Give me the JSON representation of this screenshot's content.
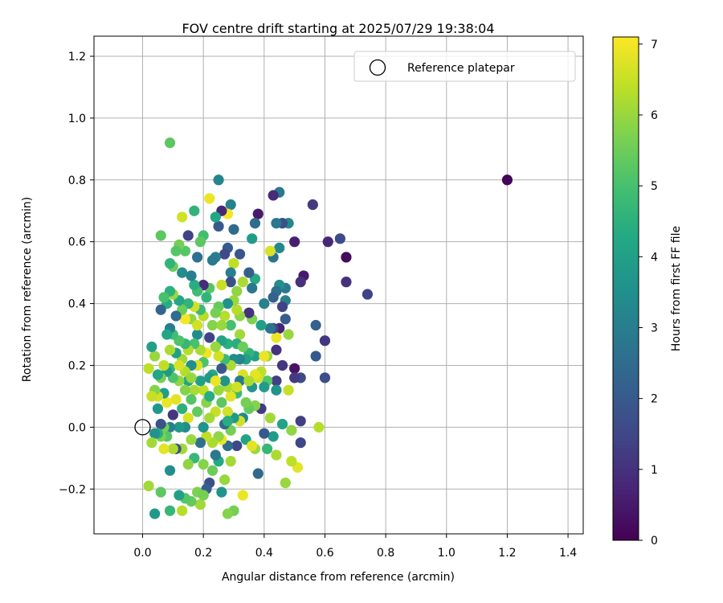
{
  "chart_data": {
    "type": "scatter",
    "title": "FOV centre drift starting at 2025/07/29 19:38:04",
    "xlabel": "Angular distance from reference (arcmin)",
    "ylabel": "Rotation from reference (arcmin)",
    "xlim": [
      -0.16,
      1.45
    ],
    "ylim": [
      -0.345,
      1.265
    ],
    "xticks": [
      0.0,
      0.2,
      0.4,
      0.6,
      0.8,
      1.0,
      1.2,
      1.4
    ],
    "xtick_labels": [
      "0.0",
      "0.2",
      "0.4",
      "0.6",
      "0.8",
      "1.0",
      "1.2",
      "1.4"
    ],
    "yticks": [
      -0.2,
      0.0,
      0.2,
      0.4,
      0.6,
      0.8,
      1.0,
      1.2
    ],
    "ytick_labels": [
      "−0.2",
      "0.0",
      "0.2",
      "0.4",
      "0.6",
      "0.8",
      "1.0",
      "1.2"
    ],
    "grid": true,
    "legend": {
      "position": "top-right",
      "entries": [
        "Reference platepar"
      ]
    },
    "reference_point": {
      "x": 0.0,
      "y": 0.0
    },
    "colorbar": {
      "label": "Hours from first FF file",
      "min": 0,
      "max": 7.1,
      "ticks": [
        0,
        1,
        2,
        3,
        4,
        5,
        6,
        7
      ],
      "tick_labels": [
        "0",
        "1",
        "2",
        "3",
        "4",
        "5",
        "6",
        "7"
      ],
      "colormap": "viridis"
    },
    "points": [
      [
        1.2,
        0.8,
        0.1
      ],
      [
        0.09,
        0.92,
        5.3
      ],
      [
        0.74,
        0.43,
        1.4
      ],
      [
        0.67,
        0.55,
        0.2
      ],
      [
        0.67,
        0.47,
        1.0
      ],
      [
        0.65,
        0.61,
        1.6
      ],
      [
        0.61,
        0.6,
        0.8
      ],
      [
        0.6,
        0.28,
        1.1
      ],
      [
        0.6,
        0.16,
        1.7
      ],
      [
        0.57,
        0.33,
        2.2
      ],
      [
        0.57,
        0.23,
        2.0
      ],
      [
        0.58,
        0.0,
        6.3
      ],
      [
        0.56,
        0.72,
        1.2
      ],
      [
        0.53,
        0.49,
        0.5
      ],
      [
        0.52,
        0.47,
        1.0
      ],
      [
        0.52,
        0.16,
        1.6
      ],
      [
        0.52,
        0.02,
        1.3
      ],
      [
        0.52,
        -0.05,
        1.5
      ],
      [
        0.51,
        -0.13,
        6.8
      ],
      [
        0.5,
        0.6,
        0.6
      ],
      [
        0.5,
        0.19,
        0.4
      ],
      [
        0.5,
        0.16,
        1.2
      ],
      [
        0.49,
        -0.01,
        5.9
      ],
      [
        0.49,
        -0.11,
        6.4
      ],
      [
        0.48,
        0.66,
        3.3
      ],
      [
        0.48,
        0.3,
        6.0
      ],
      [
        0.48,
        0.12,
        6.5
      ],
      [
        0.47,
        0.45,
        2.9
      ],
      [
        0.47,
        0.41,
        3.1
      ],
      [
        0.47,
        0.35,
        2.1
      ],
      [
        0.47,
        -0.18,
        6.0
      ],
      [
        0.46,
        0.66,
        1.7
      ],
      [
        0.46,
        0.39,
        1.4
      ],
      [
        0.46,
        0.2,
        1.1
      ],
      [
        0.46,
        0.01,
        4.1
      ],
      [
        0.45,
        0.76,
        2.9
      ],
      [
        0.45,
        0.58,
        3.3
      ],
      [
        0.45,
        0.46,
        3.5
      ],
      [
        0.45,
        0.32,
        0.7
      ],
      [
        0.44,
        0.66,
        2.8
      ],
      [
        0.44,
        0.44,
        2.6
      ],
      [
        0.44,
        0.29,
        6.9
      ],
      [
        0.44,
        0.25,
        1.0
      ],
      [
        0.44,
        0.15,
        1.3
      ],
      [
        0.44,
        -0.09,
        6.2
      ],
      [
        0.43,
        0.75,
        0.9
      ],
      [
        0.43,
        0.55,
        2.7
      ],
      [
        0.43,
        0.42,
        2.2
      ],
      [
        0.43,
        0.32,
        1.5
      ],
      [
        0.43,
        -0.03,
        3.9
      ],
      [
        0.42,
        0.57,
        6.7
      ],
      [
        0.42,
        0.32,
        2.7
      ],
      [
        0.42,
        0.03,
        6.1
      ],
      [
        0.41,
        0.23,
        6.0
      ],
      [
        0.41,
        0.15,
        5.2
      ],
      [
        0.41,
        -0.07,
        4.7
      ],
      [
        0.4,
        0.4,
        3.1
      ],
      [
        0.4,
        0.13,
        3.9
      ],
      [
        0.4,
        -0.02,
        2.0
      ],
      [
        0.39,
        0.33,
        4.0
      ],
      [
        0.39,
        0.18,
        6.4
      ],
      [
        0.39,
        0.06,
        1.2
      ],
      [
        0.38,
        0.69,
        0.5
      ],
      [
        0.38,
        0.16,
        6.6
      ],
      [
        0.38,
        -0.15,
        2.4
      ],
      [
        0.37,
        0.66,
        2.5
      ],
      [
        0.37,
        0.48,
        4.3
      ],
      [
        0.37,
        0.23,
        4.0
      ],
      [
        0.37,
        0.17,
        6.8
      ],
      [
        0.37,
        0.07,
        5.8
      ],
      [
        0.37,
        -0.07,
        6.0
      ],
      [
        0.36,
        0.61,
        3.9
      ],
      [
        0.36,
        0.45,
        2.8
      ],
      [
        0.36,
        0.35,
        5.7
      ],
      [
        0.36,
        0.13,
        3.7
      ],
      [
        0.35,
        0.5,
        2.1
      ],
      [
        0.35,
        0.37,
        1.0
      ],
      [
        0.35,
        0.24,
        4.6
      ],
      [
        0.35,
        0.06,
        5.4
      ],
      [
        0.34,
        0.22,
        4.0
      ],
      [
        0.34,
        0.08,
        5.6
      ],
      [
        0.34,
        -0.04,
        4.1
      ],
      [
        0.33,
        0.47,
        6.2
      ],
      [
        0.33,
        0.17,
        6.7
      ],
      [
        0.33,
        0.03,
        3.3
      ],
      [
        0.33,
        -0.22,
        6.9
      ],
      [
        0.32,
        0.56,
        1.9
      ],
      [
        0.32,
        0.36,
        5.9
      ],
      [
        0.32,
        0.3,
        6.1
      ],
      [
        0.32,
        0.22,
        3.2
      ],
      [
        0.32,
        0.15,
        2.9
      ],
      [
        0.32,
        0.02,
        6.6
      ],
      [
        0.31,
        0.44,
        5.9
      ],
      [
        0.31,
        0.38,
        6.3
      ],
      [
        0.31,
        0.27,
        4.4
      ],
      [
        0.31,
        0.11,
        4.8
      ],
      [
        0.31,
        -0.06,
        1.5
      ],
      [
        0.3,
        0.64,
        2.5
      ],
      [
        0.3,
        0.53,
        6.4
      ],
      [
        0.3,
        0.41,
        6.0
      ],
      [
        0.3,
        0.22,
        3.4
      ],
      [
        0.3,
        0.03,
        3.8
      ],
      [
        0.3,
        -0.27,
        5.6
      ],
      [
        0.29,
        0.72,
        3.1
      ],
      [
        0.29,
        0.5,
        3.0
      ],
      [
        0.29,
        0.47,
        1.7
      ],
      [
        0.29,
        0.33,
        5.0
      ],
      [
        0.29,
        0.2,
        6.2
      ],
      [
        0.29,
        0.1,
        6.8
      ],
      [
        0.29,
        -0.01,
        5.6
      ],
      [
        0.29,
        -0.11,
        6.1
      ],
      [
        0.28,
        0.69,
        7.0
      ],
      [
        0.28,
        0.58,
        2.0
      ],
      [
        0.28,
        0.4,
        3.6
      ],
      [
        0.28,
        0.27,
        4.5
      ],
      [
        0.28,
        0.13,
        6.2
      ],
      [
        0.28,
        0.05,
        6.6
      ],
      [
        0.28,
        -0.06,
        2.5
      ],
      [
        0.28,
        -0.28,
        5.8
      ],
      [
        0.27,
        0.56,
        1.6
      ],
      [
        0.27,
        0.36,
        6.3
      ],
      [
        0.27,
        0.22,
        4.8
      ],
      [
        0.27,
        0.15,
        3.6
      ],
      [
        0.27,
        0.01,
        2.4
      ],
      [
        0.27,
        -0.17,
        6.0
      ],
      [
        0.26,
        0.7,
        0.8
      ],
      [
        0.26,
        0.46,
        6.5
      ],
      [
        0.26,
        0.28,
        4.1
      ],
      [
        0.26,
        0.19,
        1.9
      ],
      [
        0.26,
        0.08,
        5.3
      ],
      [
        0.26,
        -0.04,
        6.9
      ],
      [
        0.26,
        -0.21,
        3.6
      ],
      [
        0.25,
        0.8,
        3.2
      ],
      [
        0.25,
        0.65,
        2.0
      ],
      [
        0.25,
        0.39,
        5.4
      ],
      [
        0.25,
        0.23,
        6.6
      ],
      [
        0.25,
        0.12,
        6.0
      ],
      [
        0.25,
        -0.03,
        5.9
      ],
      [
        0.25,
        -0.11,
        4.3
      ],
      [
        0.24,
        0.68,
        4.2
      ],
      [
        0.24,
        0.55,
        3.0
      ],
      [
        0.24,
        0.37,
        5.6
      ],
      [
        0.24,
        0.26,
        6.0
      ],
      [
        0.24,
        0.05,
        6.5
      ],
      [
        0.24,
        -0.09,
        2.8
      ],
      [
        0.23,
        0.54,
        2.9
      ],
      [
        0.23,
        0.33,
        5.8
      ],
      [
        0.23,
        0.17,
        4.3
      ],
      [
        0.23,
        -0.05,
        6.2
      ],
      [
        0.23,
        -0.14,
        5.5
      ],
      [
        0.22,
        0.74,
        6.9
      ],
      [
        0.22,
        0.45,
        5.2
      ],
      [
        0.22,
        0.29,
        1.4
      ],
      [
        0.22,
        0.16,
        3.8
      ],
      [
        0.22,
        0.03,
        6.1
      ],
      [
        0.22,
        -0.18,
        1.7
      ],
      [
        0.21,
        0.42,
        4.6
      ],
      [
        0.21,
        0.24,
        6.9
      ],
      [
        0.21,
        0.08,
        5.8
      ],
      [
        0.21,
        -0.03,
        6.4
      ],
      [
        0.21,
        -0.2,
        2.1
      ],
      [
        0.2,
        0.62,
        4.9
      ],
      [
        0.2,
        0.46,
        0.9
      ],
      [
        0.2,
        0.36,
        6.3
      ],
      [
        0.2,
        0.21,
        5.1
      ],
      [
        0.2,
        0.12,
        6.4
      ],
      [
        0.2,
        0.0,
        3.6
      ],
      [
        0.2,
        -0.12,
        5.8
      ],
      [
        0.19,
        0.6,
        5.3
      ],
      [
        0.19,
        0.38,
        4.8
      ],
      [
        0.19,
        0.25,
        6.2
      ],
      [
        0.19,
        0.15,
        4.0
      ],
      [
        0.19,
        -0.05,
        2.6
      ],
      [
        0.19,
        -0.25,
        6.1
      ],
      [
        0.18,
        0.55,
        2.6
      ],
      [
        0.18,
        0.44,
        4.9
      ],
      [
        0.18,
        0.3,
        3.4
      ],
      [
        0.18,
        0.2,
        6.7
      ],
      [
        0.18,
        0.05,
        5.4
      ],
      [
        0.18,
        -0.21,
        5.7
      ],
      [
        0.17,
        0.7,
        4.6
      ],
      [
        0.17,
        0.46,
        4.4
      ],
      [
        0.17,
        0.39,
        6.6
      ],
      [
        0.17,
        0.27,
        5.0
      ],
      [
        0.17,
        0.12,
        6.2
      ],
      [
        0.17,
        -0.1,
        4.7
      ],
      [
        0.16,
        0.49,
        3.0
      ],
      [
        0.16,
        0.35,
        5.9
      ],
      [
        0.16,
        0.2,
        3.5
      ],
      [
        0.16,
        0.09,
        5.2
      ],
      [
        0.16,
        -0.04,
        6.0
      ],
      [
        0.16,
        -0.24,
        5.4
      ],
      [
        0.15,
        0.62,
        1.4
      ],
      [
        0.15,
        0.4,
        4.6
      ],
      [
        0.15,
        0.25,
        6.3
      ],
      [
        0.15,
        0.15,
        4.1
      ],
      [
        0.15,
        0.03,
        6.7
      ],
      [
        0.15,
        -0.12,
        5.9
      ],
      [
        0.14,
        0.57,
        5.2
      ],
      [
        0.14,
        0.35,
        7.0
      ],
      [
        0.14,
        0.27,
        4.7
      ],
      [
        0.14,
        0.12,
        5.8
      ],
      [
        0.14,
        0.0,
        3.4
      ],
      [
        0.14,
        -0.23,
        5.2
      ],
      [
        0.13,
        0.68,
        6.6
      ],
      [
        0.13,
        0.5,
        3.4
      ],
      [
        0.13,
        0.38,
        5.5
      ],
      [
        0.13,
        0.22,
        6.1
      ],
      [
        0.13,
        0.06,
        4.5
      ],
      [
        0.13,
        -0.07,
        6.1
      ],
      [
        0.13,
        -0.27,
        6.3
      ],
      [
        0.12,
        0.59,
        5.6
      ],
      [
        0.12,
        0.41,
        4.2
      ],
      [
        0.12,
        0.28,
        5.1
      ],
      [
        0.12,
        0.15,
        5.9
      ],
      [
        0.12,
        0.0,
        3.8
      ],
      [
        0.12,
        -0.22,
        4.0
      ],
      [
        0.11,
        0.57,
        5.2
      ],
      [
        0.11,
        0.36,
        2.5
      ],
      [
        0.11,
        0.24,
        4.0
      ],
      [
        0.11,
        0.09,
        6.8
      ],
      [
        0.11,
        -0.07,
        1.7
      ],
      [
        0.1,
        0.52,
        5.5
      ],
      [
        0.1,
        0.43,
        6.0
      ],
      [
        0.1,
        0.3,
        4.9
      ],
      [
        0.1,
        0.16,
        5.1
      ],
      [
        0.1,
        0.04,
        1.1
      ],
      [
        0.1,
        -0.07,
        6.2
      ],
      [
        0.09,
        0.53,
        4.6
      ],
      [
        0.09,
        0.44,
        4.5
      ],
      [
        0.09,
        0.32,
        3.0
      ],
      [
        0.09,
        0.25,
        6.2
      ],
      [
        0.09,
        0.19,
        4.6
      ],
      [
        0.09,
        0.0,
        3.1
      ],
      [
        0.09,
        -0.14,
        3.5
      ],
      [
        0.09,
        -0.27,
        4.7
      ],
      [
        0.08,
        0.4,
        4.4
      ],
      [
        0.08,
        0.3,
        4.2
      ],
      [
        0.08,
        0.18,
        3.8
      ],
      [
        0.08,
        0.08,
        6.9
      ],
      [
        0.08,
        -0.03,
        5.2
      ],
      [
        0.07,
        0.42,
        5.0
      ],
      [
        0.07,
        0.2,
        6.4
      ],
      [
        0.07,
        0.11,
        3.9
      ],
      [
        0.07,
        0.0,
        5.6
      ],
      [
        0.07,
        -0.07,
        6.8
      ],
      [
        0.06,
        0.62,
        5.3
      ],
      [
        0.06,
        0.38,
        2.3
      ],
      [
        0.06,
        0.16,
        5.6
      ],
      [
        0.06,
        0.01,
        1.8
      ],
      [
        0.06,
        -0.03,
        5.7
      ],
      [
        0.06,
        -0.21,
        5.3
      ],
      [
        0.05,
        0.17,
        4.2
      ],
      [
        0.05,
        0.1,
        6.6
      ],
      [
        0.05,
        0.06,
        3.7
      ],
      [
        0.05,
        -0.02,
        4.4
      ],
      [
        0.04,
        0.23,
        6.0
      ],
      [
        0.04,
        0.12,
        5.8
      ],
      [
        0.04,
        -0.02,
        3.6
      ],
      [
        0.04,
        -0.28,
        3.8
      ],
      [
        0.03,
        0.26,
        4.0
      ],
      [
        0.03,
        0.1,
        6.5
      ],
      [
        0.03,
        -0.05,
        6.1
      ],
      [
        0.02,
        0.19,
        6.4
      ],
      [
        0.02,
        -0.19,
        6.1
      ],
      [
        0.14,
        0.18,
        6.3
      ],
      [
        0.22,
        0.1,
        4.4
      ],
      [
        0.26,
        0.33,
        6.0
      ],
      [
        0.33,
        0.26,
        5.5
      ],
      [
        0.36,
        -0.06,
        6.8
      ],
      [
        0.4,
        0.23,
        6.9
      ],
      [
        0.44,
        0.12,
        3.6
      ],
      [
        0.24,
        0.15,
        6.9
      ],
      [
        0.18,
        0.33,
        6.6
      ],
      [
        0.12,
        0.2,
        6.7
      ],
      [
        0.31,
        0.13,
        6.6
      ],
      [
        0.2,
        -0.22,
        5.6
      ],
      [
        0.16,
        0.16,
        6.0
      ],
      [
        0.28,
        0.02,
        4.4
      ],
      [
        0.35,
        0.15,
        6.2
      ]
    ]
  }
}
